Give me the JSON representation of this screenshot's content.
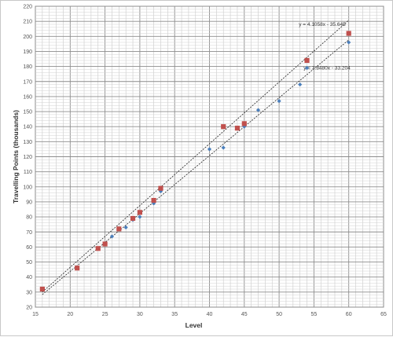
{
  "chart_data": {
    "type": "scatter",
    "xlabel": "Level",
    "ylabel": "Travelling Points (thousands)",
    "xlim": [
      15,
      65
    ],
    "ylim": [
      20,
      220
    ],
    "x_ticks": [
      15,
      20,
      25,
      30,
      35,
      40,
      45,
      50,
      55,
      60,
      65
    ],
    "y_ticks": [
      20,
      30,
      40,
      50,
      60,
      70,
      80,
      90,
      100,
      110,
      120,
      130,
      140,
      150,
      160,
      170,
      180,
      190,
      200,
      210,
      220
    ],
    "grid": true,
    "series": [
      {
        "marker": "diamond",
        "color": "#4a7ebb",
        "points": [
          {
            "x": 21,
            "y": 46
          },
          {
            "x": 24,
            "y": 59
          },
          {
            "x": 25,
            "y": 62
          },
          {
            "x": 26,
            "y": 67
          },
          {
            "x": 28,
            "y": 73
          },
          {
            "x": 29,
            "y": 78
          },
          {
            "x": 30,
            "y": 80
          },
          {
            "x": 32,
            "y": 89
          },
          {
            "x": 33,
            "y": 97
          },
          {
            "x": 40,
            "y": 125
          },
          {
            "x": 42,
            "y": 126
          },
          {
            "x": 44,
            "y": 139
          },
          {
            "x": 45,
            "y": 140
          },
          {
            "x": 47,
            "y": 151
          },
          {
            "x": 50,
            "y": 157
          },
          {
            "x": 53,
            "y": 168
          },
          {
            "x": 54,
            "y": 179
          },
          {
            "x": 60,
            "y": 196
          }
        ]
      },
      {
        "marker": "square",
        "color": "#c0504d",
        "points": [
          {
            "x": 16,
            "y": 32
          },
          {
            "x": 21,
            "y": 46
          },
          {
            "x": 24,
            "y": 59
          },
          {
            "x": 25,
            "y": 62
          },
          {
            "x": 27,
            "y": 72
          },
          {
            "x": 29,
            "y": 79
          },
          {
            "x": 30,
            "y": 83
          },
          {
            "x": 32,
            "y": 91
          },
          {
            "x": 33,
            "y": 99
          },
          {
            "x": 42,
            "y": 140
          },
          {
            "x": 44,
            "y": 139
          },
          {
            "x": 45,
            "y": 142
          },
          {
            "x": 54,
            "y": 184
          },
          {
            "x": 60,
            "y": 202
          }
        ]
      }
    ],
    "trendlines": [
      {
        "slope": 4.1058,
        "intercept": -35.645,
        "x_range": [
          16,
          60
        ],
        "label": "y = 4.1058x - 35.645"
      },
      {
        "slope": 3.848,
        "intercept": -33.204,
        "x_range": [
          16,
          60
        ],
        "label": "y = 3.8480x - 33.204"
      }
    ]
  }
}
